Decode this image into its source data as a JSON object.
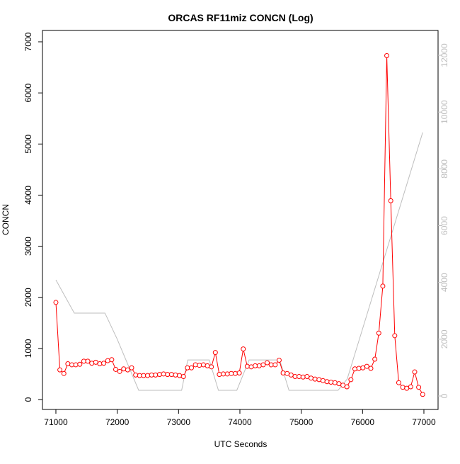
{
  "chart_data": {
    "type": "line",
    "title": "ORCAS RF11miz CONCN (Log)",
    "x_label": "UTC Seconds",
    "y_label": "CONCN",
    "xlim": [
      70781,
      77231
    ],
    "ylim": [
      -194,
      7222
    ],
    "y2lim": [
      -474,
      12874
    ],
    "xticks": [
      71000,
      72000,
      73000,
      74000,
      75000,
      76000,
      77000
    ],
    "yticks": [
      0,
      1000,
      2000,
      3000,
      4000,
      5000,
      6000,
      7000
    ],
    "y2ticks": [
      0,
      2000,
      4000,
      6000,
      8000,
      10000,
      12000
    ],
    "series": [
      {
        "color": "#ff0000",
        "marker": "circle",
        "x": [
          71000,
          71065,
          71130,
          71195,
          71260,
          71325,
          71390,
          71455,
          71520,
          71585,
          71650,
          71715,
          71780,
          71845,
          71910,
          71975,
          72040,
          72105,
          72170,
          72235,
          72300,
          72365,
          72430,
          72495,
          72560,
          72625,
          72690,
          72755,
          72820,
          72885,
          72950,
          73015,
          73080,
          73145,
          73210,
          73275,
          73340,
          73405,
          73470,
          73535,
          73600,
          73665,
          73730,
          73795,
          73860,
          73925,
          73990,
          74055,
          74120,
          74185,
          74250,
          74315,
          74380,
          74445,
          74510,
          74575,
          74640,
          74705,
          74770,
          74835,
          74900,
          74965,
          75030,
          75095,
          75160,
          75225,
          75290,
          75355,
          75420,
          75485,
          75550,
          75615,
          75680,
          75745,
          75810,
          75875,
          75940,
          76005,
          76070,
          76135,
          76200,
          76265,
          76330,
          76395,
          76460,
          76525,
          76590,
          76655,
          76720,
          76785,
          76850,
          76915,
          76980
        ],
        "values": [
          1900,
          580,
          510,
          700,
          680,
          680,
          690,
          750,
          750,
          710,
          730,
          700,
          710,
          760,
          780,
          590,
          550,
          600,
          580,
          620,
          480,
          470,
          470,
          470,
          480,
          480,
          490,
          500,
          490,
          490,
          480,
          470,
          450,
          620,
          620,
          680,
          670,
          680,
          660,
          640,
          920,
          490,
          500,
          500,
          510,
          510,
          520,
          990,
          650,
          640,
          660,
          660,
          680,
          720,
          680,
          680,
          770,
          520,
          510,
          480,
          450,
          450,
          440,
          450,
          420,
          400,
          390,
          370,
          350,
          340,
          330,
          310,
          280,
          250,
          390,
          600,
          610,
          620,
          650,
          610,
          790,
          1300,
          2220,
          6730,
          3890,
          1250,
          330,
          240,
          220,
          250,
          540,
          240,
          100
        ]
      },
      {
        "color": "#bebebe",
        "axis": "y2",
        "x": [
          71000,
          71300,
          71800,
          72000,
          72350,
          73050,
          73150,
          73500,
          73650,
          73950,
          74150,
          74650,
          74800,
          75600,
          75750,
          76980
        ],
        "values": [
          4090,
          2920,
          2920,
          2000,
          200,
          200,
          1270,
          1270,
          200,
          200,
          1270,
          1270,
          200,
          200,
          600,
          9280
        ]
      }
    ]
  }
}
